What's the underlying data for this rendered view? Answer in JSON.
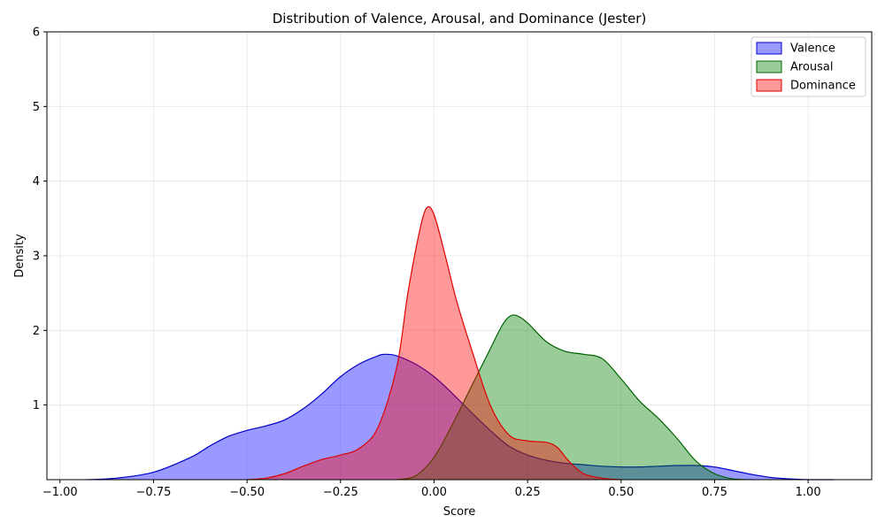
{
  "chart_data": {
    "type": "area",
    "title": "Distribution of Valence, Arousal, and Dominance (Jester)",
    "xlabel": "Score",
    "ylabel": "Density",
    "xlim": [
      -1.035,
      1.17
    ],
    "ylim": [
      0,
      6
    ],
    "xticks": [
      -1.0,
      -0.75,
      -0.5,
      -0.25,
      0.0,
      0.25,
      0.5,
      0.75,
      1.0
    ],
    "xtick_labels": [
      "−1.00",
      "−0.75",
      "−0.50",
      "−0.25",
      "0.00",
      "0.25",
      "0.50",
      "0.75",
      "1.00"
    ],
    "yticks": [
      1,
      2,
      3,
      4,
      5,
      6
    ],
    "ytick_labels": [
      "1",
      "2",
      "3",
      "4",
      "5",
      "6"
    ],
    "grid": true,
    "legend_position": "top-right",
    "series": [
      {
        "name": "Valence",
        "fill": "#0000ff",
        "stroke": "#0000cc",
        "alpha": 0.4,
        "points": [
          [
            -0.93,
            0.0
          ],
          [
            -0.85,
            0.02
          ],
          [
            -0.75,
            0.1
          ],
          [
            -0.65,
            0.3
          ],
          [
            -0.6,
            0.45
          ],
          [
            -0.55,
            0.58
          ],
          [
            -0.5,
            0.66
          ],
          [
            -0.45,
            0.72
          ],
          [
            -0.4,
            0.8
          ],
          [
            -0.35,
            0.95
          ],
          [
            -0.3,
            1.15
          ],
          [
            -0.25,
            1.38
          ],
          [
            -0.2,
            1.55
          ],
          [
            -0.15,
            1.66
          ],
          [
            -0.13,
            1.68
          ],
          [
            -0.1,
            1.66
          ],
          [
            -0.05,
            1.55
          ],
          [
            0.0,
            1.38
          ],
          [
            0.05,
            1.15
          ],
          [
            0.1,
            0.9
          ],
          [
            0.15,
            0.66
          ],
          [
            0.2,
            0.45
          ],
          [
            0.25,
            0.33
          ],
          [
            0.3,
            0.26
          ],
          [
            0.35,
            0.22
          ],
          [
            0.4,
            0.2
          ],
          [
            0.45,
            0.18
          ],
          [
            0.5,
            0.17
          ],
          [
            0.55,
            0.17
          ],
          [
            0.6,
            0.18
          ],
          [
            0.65,
            0.19
          ],
          [
            0.7,
            0.19
          ],
          [
            0.75,
            0.17
          ],
          [
            0.8,
            0.12
          ],
          [
            0.85,
            0.07
          ],
          [
            0.9,
            0.03
          ],
          [
            0.95,
            0.01
          ],
          [
            1.0,
            0.0
          ],
          [
            1.07,
            0.0
          ]
        ]
      },
      {
        "name": "Arousal",
        "fill": "#008000",
        "stroke": "#006400",
        "alpha": 0.4,
        "points": [
          [
            -0.1,
            0.0
          ],
          [
            -0.05,
            0.05
          ],
          [
            0.0,
            0.3
          ],
          [
            0.05,
            0.75
          ],
          [
            0.1,
            1.25
          ],
          [
            0.15,
            1.75
          ],
          [
            0.18,
            2.05
          ],
          [
            0.2,
            2.18
          ],
          [
            0.22,
            2.2
          ],
          [
            0.25,
            2.1
          ],
          [
            0.3,
            1.85
          ],
          [
            0.35,
            1.72
          ],
          [
            0.4,
            1.68
          ],
          [
            0.45,
            1.62
          ],
          [
            0.5,
            1.35
          ],
          [
            0.55,
            1.05
          ],
          [
            0.6,
            0.82
          ],
          [
            0.65,
            0.55
          ],
          [
            0.7,
            0.25
          ],
          [
            0.75,
            0.08
          ],
          [
            0.8,
            0.01
          ],
          [
            0.85,
            0.0
          ]
        ]
      },
      {
        "name": "Dominance",
        "fill": "#ff0000",
        "stroke": "#dd0000",
        "alpha": 0.4,
        "points": [
          [
            -0.5,
            0.0
          ],
          [
            -0.45,
            0.02
          ],
          [
            -0.4,
            0.08
          ],
          [
            -0.35,
            0.18
          ],
          [
            -0.3,
            0.27
          ],
          [
            -0.25,
            0.33
          ],
          [
            -0.2,
            0.42
          ],
          [
            -0.15,
            0.7
          ],
          [
            -0.1,
            1.5
          ],
          [
            -0.07,
            2.5
          ],
          [
            -0.04,
            3.3
          ],
          [
            -0.02,
            3.64
          ],
          [
            0.0,
            3.55
          ],
          [
            0.03,
            3.0
          ],
          [
            0.06,
            2.4
          ],
          [
            0.1,
            1.75
          ],
          [
            0.15,
            1.0
          ],
          [
            0.2,
            0.6
          ],
          [
            0.25,
            0.52
          ],
          [
            0.3,
            0.5
          ],
          [
            0.33,
            0.43
          ],
          [
            0.36,
            0.25
          ],
          [
            0.4,
            0.08
          ],
          [
            0.45,
            0.02
          ],
          [
            0.5,
            0.0
          ]
        ]
      }
    ]
  }
}
